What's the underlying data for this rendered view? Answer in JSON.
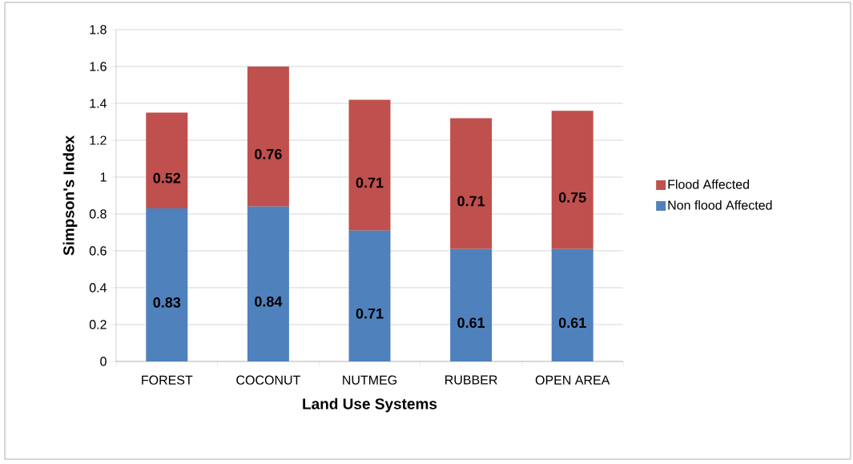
{
  "chart_data": {
    "type": "bar",
    "stacked": true,
    "xlabel": "Land Use Systems",
    "ylabel": "Simpson's Index",
    "categories": [
      "FOREST",
      "COCONUT",
      "NUTMEG",
      "RUBBER",
      "OPEN AREA"
    ],
    "series": [
      {
        "name": "Non flood Affected",
        "color": "#4f81bd",
        "values": [
          0.83,
          0.84,
          0.71,
          0.61,
          0.61
        ]
      },
      {
        "name": "Flood Affected",
        "color": "#c0504d",
        "values": [
          0.52,
          0.76,
          0.71,
          0.71,
          0.75
        ]
      }
    ],
    "ylim": [
      0,
      1.8
    ],
    "yticks": [
      0,
      0.2,
      0.4,
      0.6,
      0.8,
      1,
      1.2,
      1.4,
      1.6,
      1.8
    ],
    "grid": "y",
    "legend": "right",
    "data_labels": true
  }
}
